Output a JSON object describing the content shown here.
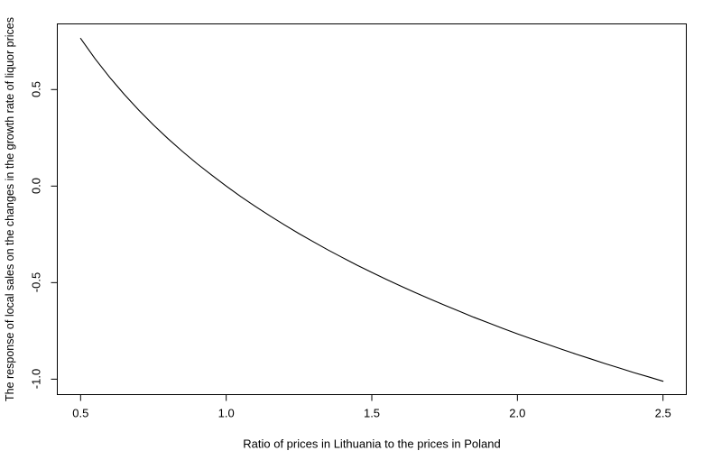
{
  "chart_data": {
    "type": "line",
    "title": "",
    "xlabel": "Ratio of prices in Lithuania to the prices in Poland",
    "ylabel": "The response of local sales on the changes in the growth rate of liquor prices",
    "x": [
      0.5,
      0.55,
      0.6,
      0.65,
      0.7,
      0.75,
      0.8,
      0.85,
      0.9,
      0.95,
      1.0,
      1.05,
      1.1,
      1.15,
      1.2,
      1.25,
      1.3,
      1.35,
      1.4,
      1.45,
      1.5,
      1.55,
      1.6,
      1.65,
      1.7,
      1.75,
      1.8,
      1.85,
      1.9,
      1.95,
      2.0,
      2.05,
      2.1,
      2.15,
      2.2,
      2.25,
      2.3,
      2.35,
      2.4,
      2.45,
      2.5
    ],
    "y": [
      0.765,
      0.659,
      0.563,
      0.475,
      0.393,
      0.317,
      0.246,
      0.179,
      0.116,
      0.057,
      0.0,
      -0.054,
      -0.105,
      -0.154,
      -0.201,
      -0.246,
      -0.289,
      -0.331,
      -0.371,
      -0.41,
      -0.447,
      -0.483,
      -0.518,
      -0.552,
      -0.585,
      -0.617,
      -0.648,
      -0.679,
      -0.708,
      -0.737,
      -0.765,
      -0.792,
      -0.818,
      -0.844,
      -0.87,
      -0.894,
      -0.919,
      -0.942,
      -0.966,
      -0.988,
      -1.011
    ],
    "xlim": [
      0.42,
      2.58
    ],
    "ylim": [
      -1.08,
      0.84
    ],
    "x_ticks": {
      "values": [
        0.5,
        1.0,
        1.5,
        2.0,
        2.5
      ],
      "labels": [
        "0.5",
        "1.0",
        "1.5",
        "2.0",
        "2.5"
      ]
    },
    "y_ticks": {
      "values": [
        -1.0,
        -0.5,
        0.0,
        0.5
      ],
      "labels": [
        "-1.0",
        "-0.5",
        "0.0",
        "0.5"
      ]
    },
    "line_color": "#000000",
    "axis_color": "#000000",
    "background_color": "#ffffff",
    "grid": false,
    "legend_position": "none"
  }
}
